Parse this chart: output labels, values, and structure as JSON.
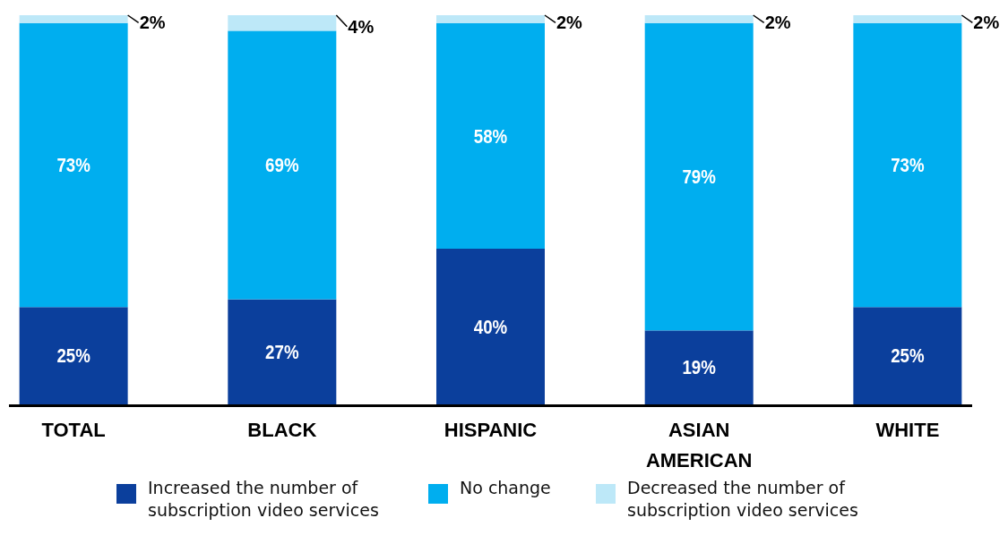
{
  "chart_data": {
    "type": "bar",
    "stacked": true,
    "categories": [
      "TOTAL",
      "BLACK",
      "HISPANIC",
      "ASIAN AMERICAN",
      "WHITE"
    ],
    "legend": "bottom",
    "series": [
      {
        "name": "Increased the number of subscription video services",
        "color": "#0b3f9c",
        "values": [
          25,
          27,
          40,
          19,
          25
        ],
        "value_labels": [
          "25%",
          "27%",
          "40%",
          "19%",
          "25%"
        ]
      },
      {
        "name": "No change",
        "color": "#00aeef",
        "values": [
          73,
          69,
          58,
          79,
          73
        ],
        "value_labels": [
          "73%",
          "69%",
          "58%",
          "79%",
          "73%"
        ]
      },
      {
        "name": "Decreased the number of subscription video services",
        "color": "#bde8f8",
        "values": [
          2,
          4,
          2,
          2,
          2
        ],
        "value_labels": [
          "2%",
          "4%",
          "2%",
          "2%",
          "2%"
        ]
      }
    ]
  }
}
